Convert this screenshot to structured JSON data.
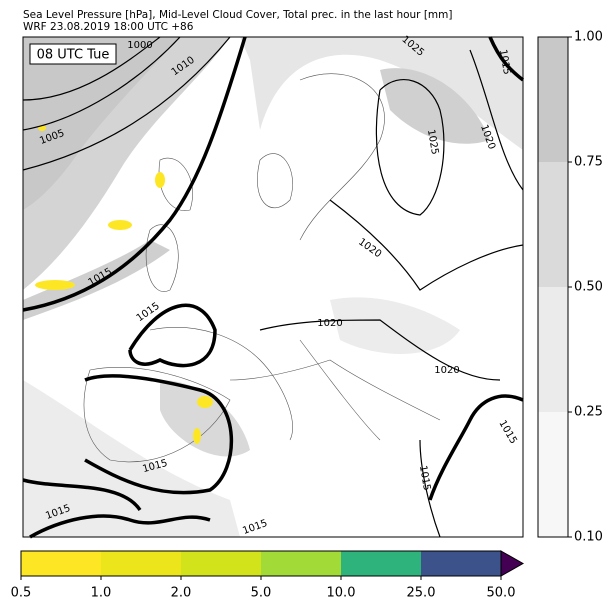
{
  "header": {
    "title_line1": "Sea Level Pressure [hPa], Mid-Level Cloud Cover, Total prec. in the last hour [mm]",
    "title_line2": "WRF 23.08.2019 18:00 UTC +86"
  },
  "time_label": "08 UTC Tue",
  "contour_labels": [
    "1000",
    "1010",
    "1005",
    "1015",
    "1015",
    "1015",
    "1015",
    "1015",
    "1020",
    "1020",
    "1020",
    "1020",
    "1025",
    "1025",
    "1015",
    "1015",
    "1015"
  ],
  "cloud_colorbar": {
    "ticks": [
      "0.10",
      "0.25",
      "0.50",
      "0.75",
      "1.00"
    ],
    "colors": [
      "#f7f7f7",
      "#ebebeb",
      "#dadada",
      "#c8c8c8"
    ]
  },
  "precip_colorbar": {
    "ticks": [
      "0.5",
      "1.0",
      "2.0",
      "5.0",
      "10.0",
      "25.0",
      "50.0"
    ],
    "colors": [
      "#fde725",
      "#ede51b",
      "#d2e21b",
      "#a2da37",
      "#2eb37c",
      "#3b528b"
    ],
    "over_color": "#440154"
  }
}
